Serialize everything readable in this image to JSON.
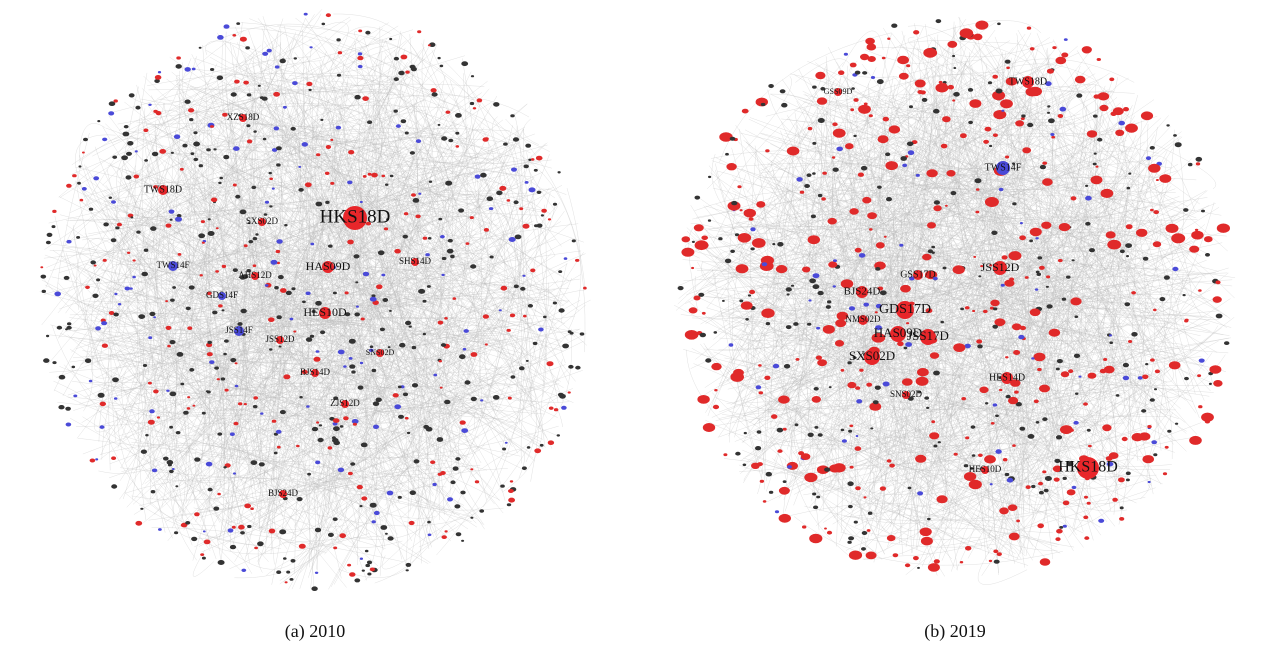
{
  "panels": [
    {
      "caption": "(a) 2010",
      "nodes": [
        {
          "label": "HKS18D",
          "color": "#e8262a"
        },
        {
          "label": "HAS09D",
          "color": "#e8262a"
        },
        {
          "label": "HES10D",
          "color": "#e8262a"
        },
        {
          "label": "TWS18D",
          "color": "#e8262a"
        },
        {
          "label": "SXS02D",
          "color": "#e8262a"
        },
        {
          "label": "AHS12D",
          "color": "#e8262a"
        },
        {
          "label": "GDS14F",
          "color": "#4a4ad8"
        },
        {
          "label": "TWS14F",
          "color": "#4a4ad8"
        },
        {
          "label": "JSS14F",
          "color": "#4a4ad8"
        },
        {
          "label": "JSS12D",
          "color": "#e8262a"
        },
        {
          "label": "BJS14D",
          "color": "#e8262a"
        },
        {
          "label": "ZJS12D",
          "color": "#e8262a"
        },
        {
          "label": "BJS24D",
          "color": "#e8262a"
        },
        {
          "label": "XZS18D",
          "color": "#e8262a"
        },
        {
          "label": "SNS02D",
          "color": "#e8262a"
        },
        {
          "label": "SHS14D",
          "color": "#e8262a"
        }
      ]
    },
    {
      "caption": "(b) 2019",
      "nodes": [
        {
          "label": "HKS18D",
          "color": "#e8262a"
        },
        {
          "label": "TWS18D",
          "color": "#e8262a"
        },
        {
          "label": "TWS14F",
          "color": "#4a4ad8"
        },
        {
          "label": "GDS17D",
          "color": "#e8262a"
        },
        {
          "label": "HAS09D",
          "color": "#e8262a"
        },
        {
          "label": "JSS17D",
          "color": "#e8262a"
        },
        {
          "label": "SXS02D",
          "color": "#e8262a"
        },
        {
          "label": "BJS24D",
          "color": "#e8262a"
        },
        {
          "label": "NMS02D",
          "color": "#e8262a"
        },
        {
          "label": "JSS12D",
          "color": "#e8262a"
        },
        {
          "label": "GSS17D",
          "color": "#e8262a"
        },
        {
          "label": "HES14D",
          "color": "#e8262a"
        },
        {
          "label": "HES10D",
          "color": "#e8262a"
        },
        {
          "label": "SNS02D",
          "color": "#e8262a"
        },
        {
          "label": "GSS09D",
          "color": "#e8262a"
        }
      ]
    }
  ]
}
